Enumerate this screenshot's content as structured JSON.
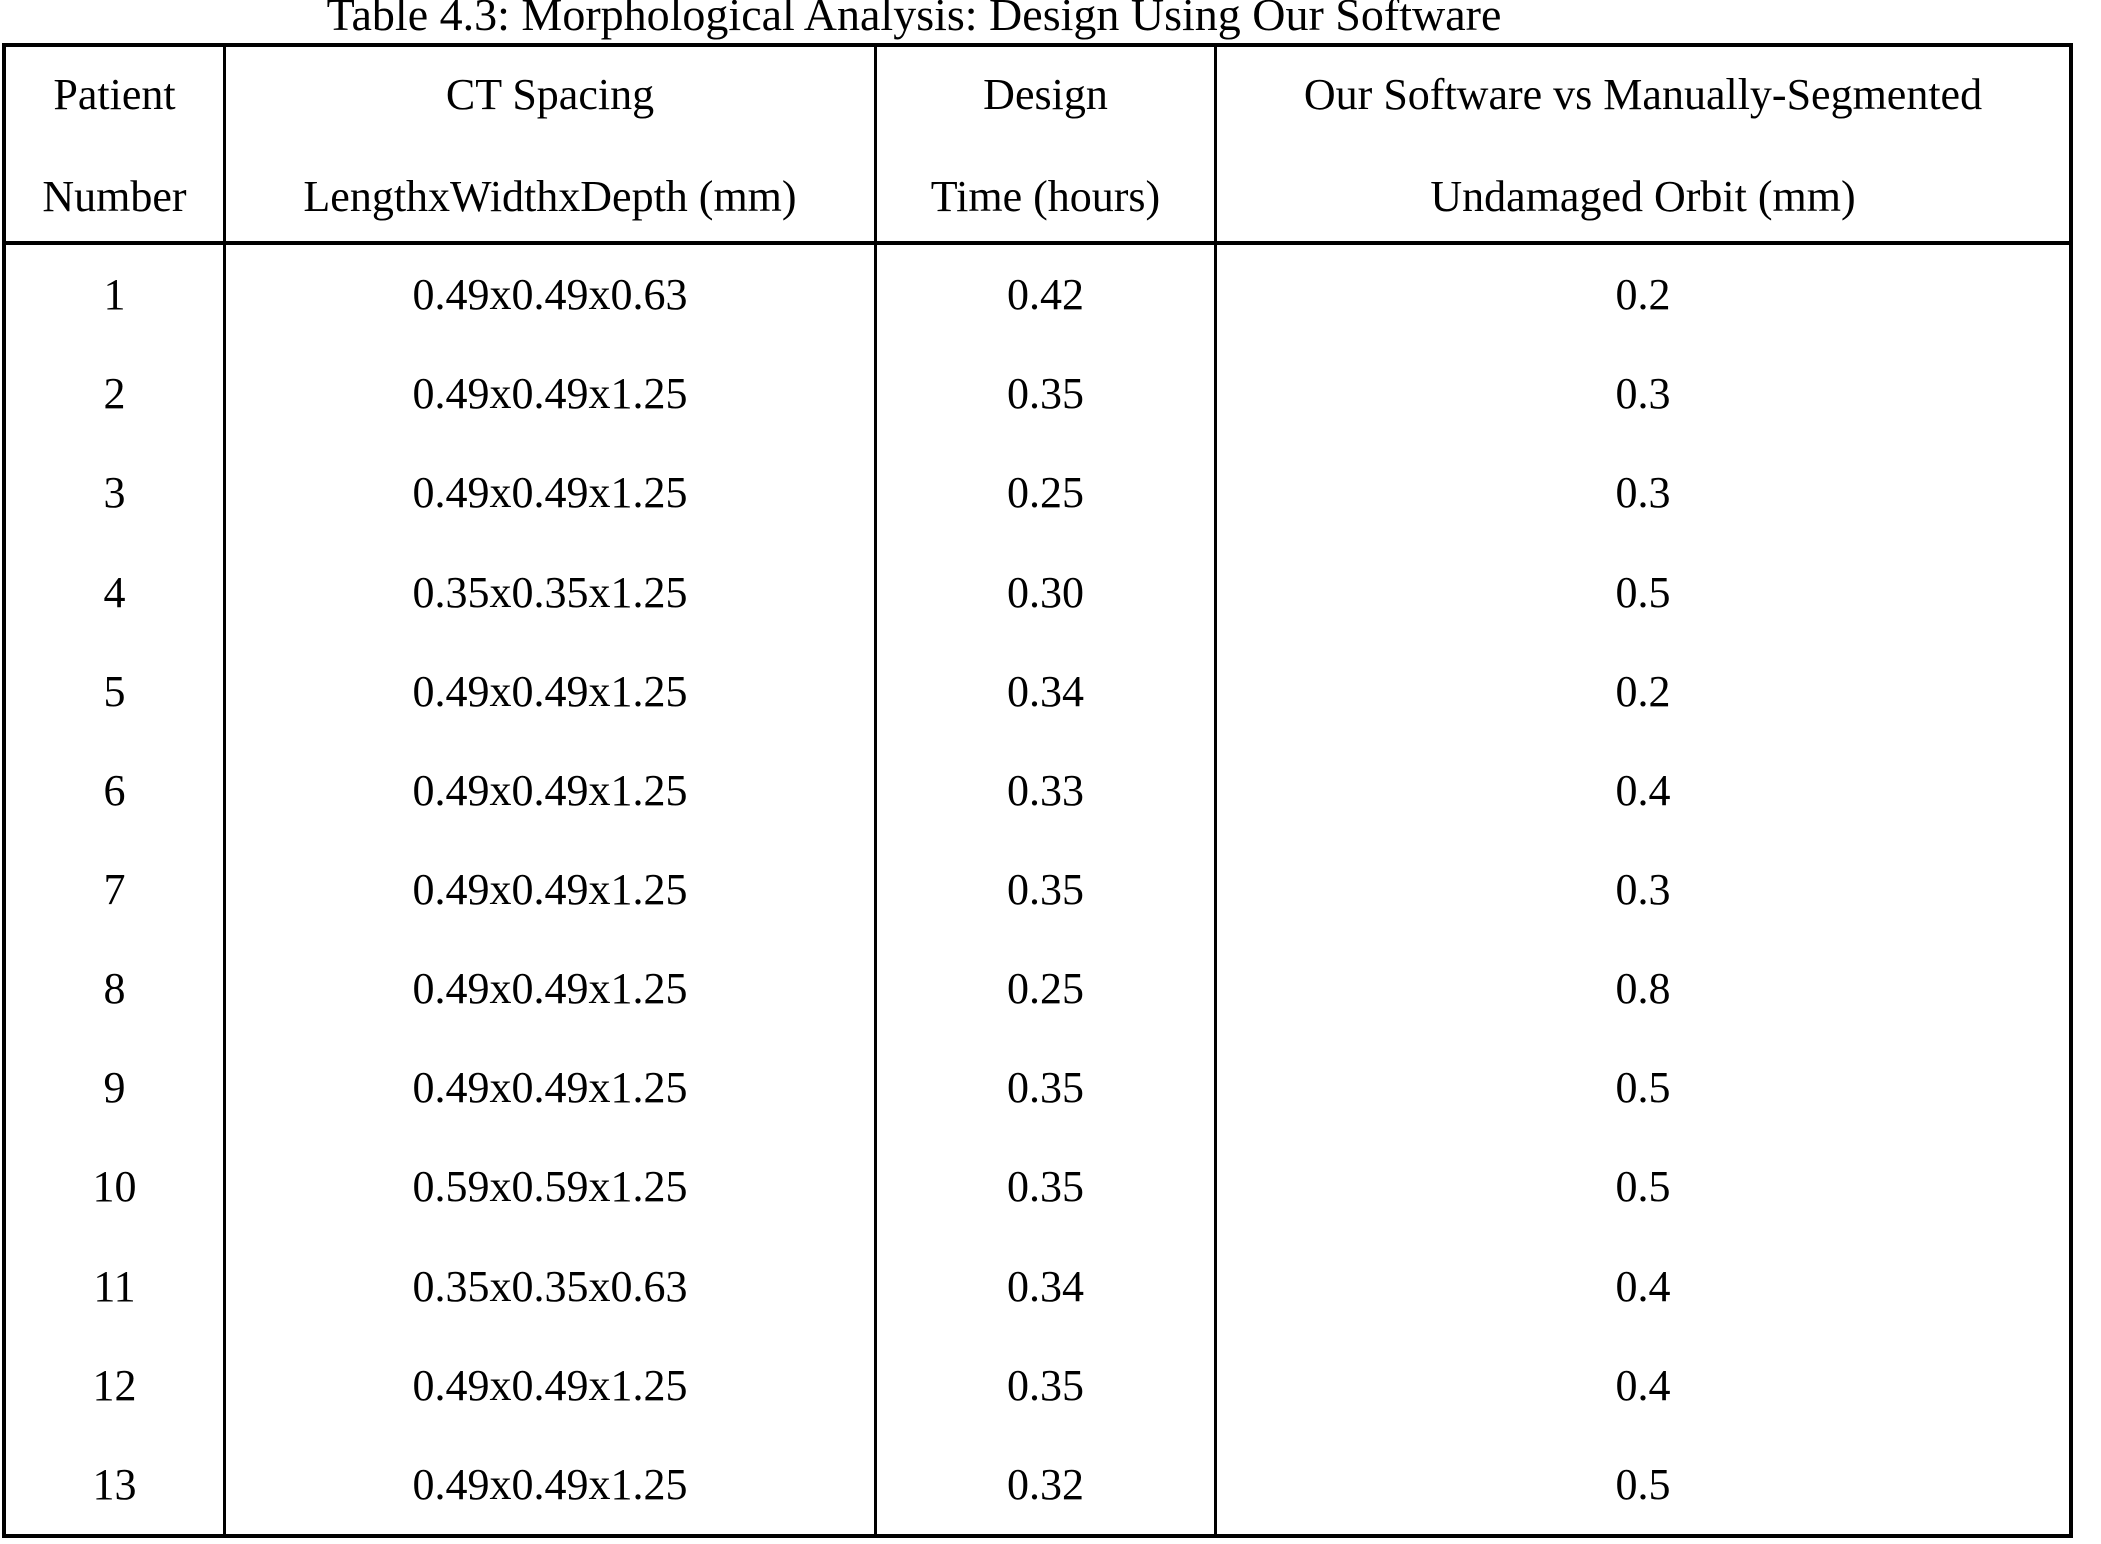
{
  "title": "Table 4.3: Morphological Analysis: Design Using Our Software",
  "colors": {
    "text": "#000000",
    "border": "#000000",
    "background": "#ffffff"
  },
  "table": {
    "columns": [
      {
        "line1": "Patient",
        "line2": "Number"
      },
      {
        "line1": "CT Spacing",
        "line2": "LengthxWidthxDepth (mm)"
      },
      {
        "line1": "Design",
        "line2": "Time (hours)"
      },
      {
        "line1": "Our Software vs Manually-Segmented",
        "line2": "Undamaged Orbit (mm)"
      }
    ],
    "rows": [
      [
        "1",
        "0.49x0.49x0.63",
        "0.42",
        "0.2"
      ],
      [
        "2",
        "0.49x0.49x1.25",
        "0.35",
        "0.3"
      ],
      [
        "3",
        "0.49x0.49x1.25",
        "0.25",
        "0.3"
      ],
      [
        "4",
        "0.35x0.35x1.25",
        "0.30",
        "0.5"
      ],
      [
        "5",
        "0.49x0.49x1.25",
        "0.34",
        "0.2"
      ],
      [
        "6",
        "0.49x0.49x1.25",
        "0.33",
        "0.4"
      ],
      [
        "7",
        "0.49x0.49x1.25",
        "0.35",
        "0.3"
      ],
      [
        "8",
        "0.49x0.49x1.25",
        "0.25",
        "0.8"
      ],
      [
        "9",
        "0.49x0.49x1.25",
        "0.35",
        "0.5"
      ],
      [
        "10",
        "0.59x0.59x1.25",
        "0.35",
        "0.5"
      ],
      [
        "11",
        "0.35x0.35x0.63",
        "0.34",
        "0.4"
      ],
      [
        "12",
        "0.49x0.49x1.25",
        "0.35",
        "0.4"
      ],
      [
        "13",
        "0.49x0.49x1.25",
        "0.32",
        "0.5"
      ]
    ]
  }
}
